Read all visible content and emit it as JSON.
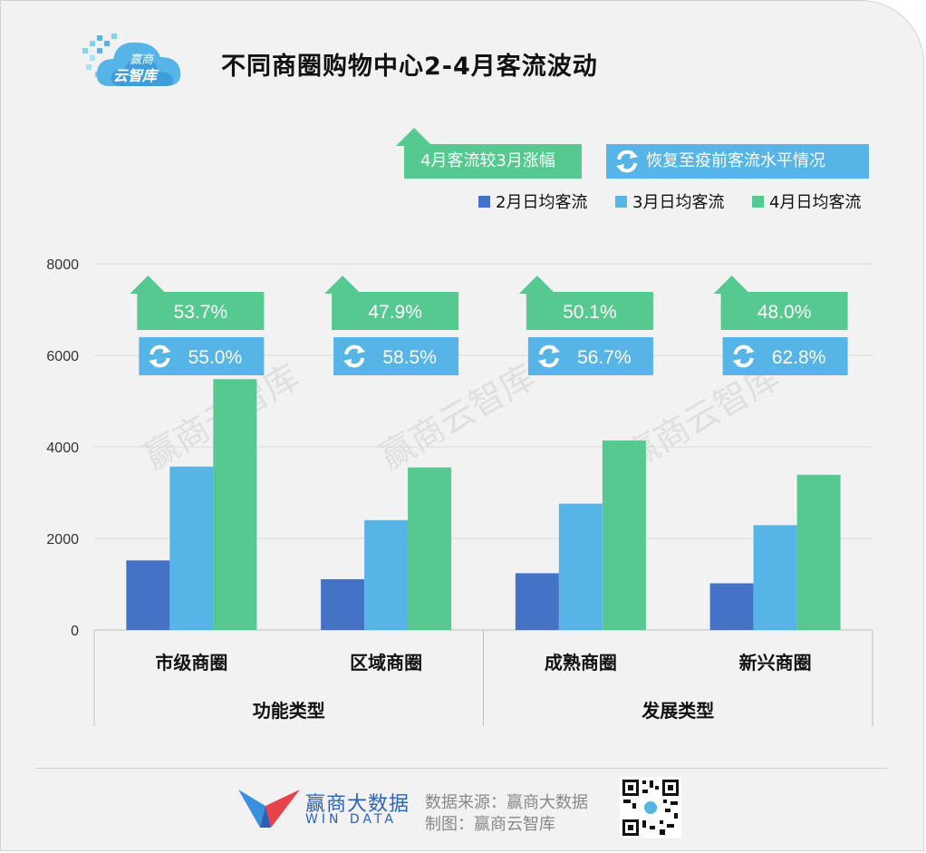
{
  "title": "不同商圈购物中心2-4月客流波动",
  "logo_text": "赢商\n云智库",
  "logo_line1": "赢商",
  "logo_line2": "云智库",
  "legend_growth": "4月客流较3月涨幅",
  "legend_recovery": "恢复至疫前客流水平情况",
  "watermark": "赢商云智库",
  "footer": {
    "brand": "赢商大数据",
    "brand_en": "WIN DATA",
    "source": "数据来源：赢商大数据",
    "maker": "制图：赢商云智库"
  },
  "colors": {
    "feb": "#4472c4",
    "mar": "#56b5e6",
    "apr": "#55c98f",
    "growth_box": "#55c98f",
    "recovery_box": "#56b5e6"
  },
  "chart_data": {
    "type": "bar",
    "title": "不同商圈购物中心2-4月客流波动",
    "categories": [
      "市级商圈",
      "区域商圈",
      "成熟商圈",
      "新兴商圈"
    ],
    "groups": [
      {
        "label": "功能类型",
        "categories": [
          "市级商圈",
          "区域商圈"
        ]
      },
      {
        "label": "发展类型",
        "categories": [
          "成熟商圈",
          "新兴商圈"
        ]
      }
    ],
    "series": [
      {
        "name": "2月日均客流",
        "values": [
          1520,
          1110,
          1240,
          1020
        ]
      },
      {
        "name": "3月日均客流",
        "values": [
          3570,
          2400,
          2760,
          2290
        ]
      },
      {
        "name": "4月日均客流",
        "values": [
          5480,
          3550,
          4140,
          3390
        ]
      }
    ],
    "growth_labels": [
      "53.7%",
      "47.9%",
      "50.1%",
      "48.0%"
    ],
    "recovery_labels": [
      "55.0%",
      "58.5%",
      "56.7%",
      "62.8%"
    ],
    "yticks": [
      "0",
      "2000",
      "4000",
      "6000",
      "8000"
    ],
    "ylim": [
      0,
      8000
    ],
    "grid": true,
    "legend_position": "top-right"
  }
}
